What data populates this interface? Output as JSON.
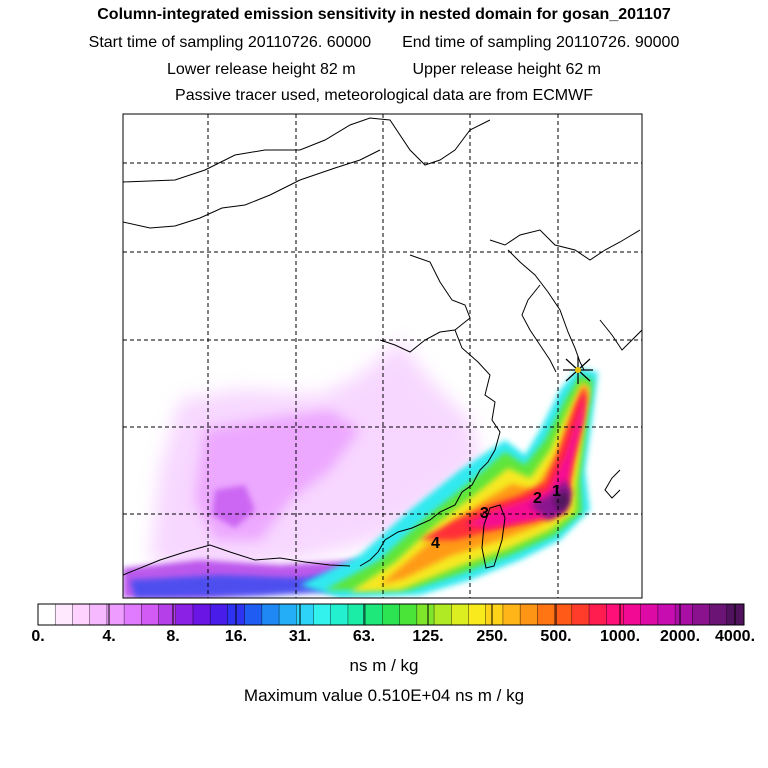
{
  "header": {
    "title": "Column-integrated emission sensitivity in nested domain for gosan_201107",
    "start_label": "Start time of sampling 20110726. 60000",
    "end_label": "End time of sampling 20110726. 90000",
    "lower_label": "Lower release height   82 m",
    "upper_label": "Upper release height   62 m",
    "tracer_note": "Passive tracer used, meteorological data are from ECMWF"
  },
  "map": {
    "release_marker": "star-icon",
    "source_labels": [
      "1",
      "2",
      "3",
      "4"
    ]
  },
  "colorbar": {
    "ticks": [
      "0.",
      "4.",
      "8.",
      "16.",
      "31.",
      "63.",
      "125.",
      "250.",
      "500.",
      "1000.",
      "2000.",
      "4000."
    ],
    "colors": [
      "#ffffff",
      "#ffe9ff",
      "#ffd2ff",
      "#f6b9ff",
      "#ee9cff",
      "#e07bff",
      "#d25af5",
      "#b53fe8",
      "#8c21e6",
      "#6a15e4",
      "#4a1cea",
      "#2d33f0",
      "#1f5cf2",
      "#1f88f5",
      "#24aef7",
      "#2dd4f7",
      "#33f2ee",
      "#22f0cf",
      "#1ceda6",
      "#1ee87a",
      "#2ce452",
      "#4ae338",
      "#7ee52a",
      "#b0ea24",
      "#dcee20",
      "#f8ea1c",
      "#ffd21a",
      "#ffb418",
      "#ff9515",
      "#ff7514",
      "#ff5a18",
      "#ff3b2a",
      "#ff1d50",
      "#ff0f78",
      "#f20a95",
      "#dd0aa6",
      "#c70cb0",
      "#aa0fa5",
      "#8a128f",
      "#6c1376",
      "#50125c"
    ],
    "units": "ns m / kg",
    "max_value_label": "Maximum value  0.510E+04 ns m / kg"
  }
}
